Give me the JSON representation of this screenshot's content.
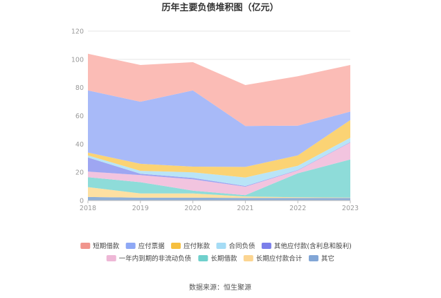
{
  "chart_data": {
    "type": "area",
    "stacked": true,
    "title": "历年主要负债堆积图（亿元）",
    "x": [
      "2018",
      "2019",
      "2020",
      "2021",
      "2022",
      "2023"
    ],
    "ylim": [
      0,
      120
    ],
    "yticks": [
      0,
      20,
      40,
      60,
      80,
      100,
      120
    ],
    "grid": true,
    "legend_position": "bottom",
    "series": [
      {
        "name": "其它",
        "color": "#8fb0d8",
        "values": [
          2.5,
          2.0,
          2.0,
          1.8,
          1.8,
          1.8
        ]
      },
      {
        "name": "长期应付款合计",
        "color": "#fde0a2",
        "values": [
          7.0,
          3.0,
          3.0,
          1.0,
          0.5,
          0.3
        ]
      },
      {
        "name": "长期借款",
        "color": "#8edcd9",
        "values": [
          7.0,
          8.0,
          2.0,
          1.0,
          17.0,
          27.0
        ]
      },
      {
        "name": "一年内到期的非流动负债",
        "color": "#f2c4df",
        "values": [
          4.0,
          5.0,
          8.0,
          6.0,
          2.0,
          12.0
        ]
      },
      {
        "name": "其他应付款(含利息和股利)",
        "color": "#9ea6f2",
        "values": [
          10.0,
          1.0,
          1.0,
          0.5,
          0.3,
          0.3
        ]
      },
      {
        "name": "合同负债",
        "color": "#b9e4f7",
        "values": [
          1.5,
          2.0,
          4.0,
          6.0,
          3.0,
          3.0
        ]
      },
      {
        "name": "应付账款",
        "color": "#fbd374",
        "values": [
          2.0,
          5.0,
          4.0,
          7.5,
          7.4,
          12.6
        ]
      },
      {
        "name": "应付票据",
        "color": "#a8baf8",
        "values": [
          44.0,
          44.0,
          54.0,
          29.0,
          21.0,
          6.0
        ]
      },
      {
        "name": "短期借款",
        "color": "#fbbcb6",
        "values": [
          26.0,
          26.0,
          20.0,
          29.0,
          35.0,
          33.0
        ]
      }
    ],
    "legend_order": [
      "短期借款",
      "应付票据",
      "应付账款",
      "合同负债",
      "其他应付款(含利息和股利)",
      "一年内到期的非流动负债",
      "长期借款",
      "长期应付款合计",
      "其它"
    ],
    "legend_colors": {
      "短期借款": "#f0958d",
      "应付票据": "#8ea8f5",
      "应付账款": "#f6bf3f",
      "合同负债": "#a5dcf5",
      "其他应付款(含利息和股利)": "#7b7fea",
      "一年内到期的非流动负债": "#eeb7d6",
      "长期借款": "#6fd0cc",
      "长期应付款合计": "#fcd591",
      "其它": "#82a6d6"
    },
    "source": "数据来源：恒生聚源"
  }
}
